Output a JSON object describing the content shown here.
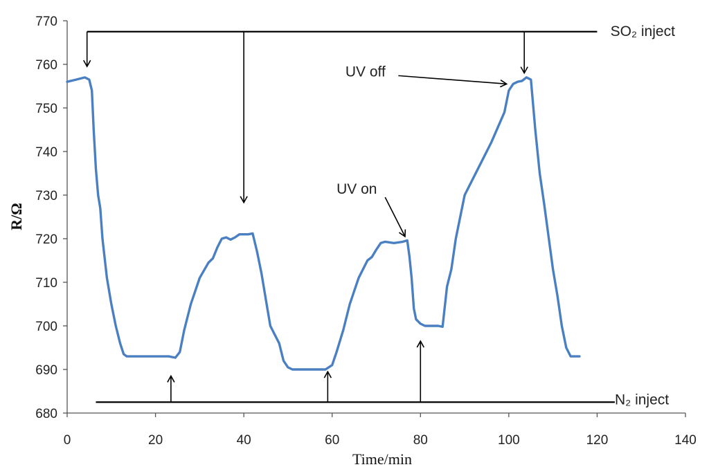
{
  "chart_data": {
    "type": "line",
    "xlabel": "Time/min",
    "ylabel": "R/Ω",
    "xlim": [
      0,
      140
    ],
    "ylim": [
      680,
      770
    ],
    "x_ticks": [
      0,
      20,
      40,
      60,
      80,
      100,
      120,
      140
    ],
    "y_ticks": [
      680,
      690,
      700,
      710,
      720,
      730,
      740,
      750,
      760,
      770
    ],
    "series": [
      {
        "color": "#4a7fc1",
        "points": [
          [
            0,
            756
          ],
          [
            2,
            756.5
          ],
          [
            4,
            757
          ],
          [
            5,
            756.5
          ],
          [
            5.6,
            754
          ],
          [
            6,
            745
          ],
          [
            6.5,
            736
          ],
          [
            7,
            730
          ],
          [
            7.5,
            727
          ],
          [
            8,
            720
          ],
          [
            9,
            711
          ],
          [
            10,
            705
          ],
          [
            11,
            700
          ],
          [
            12,
            696
          ],
          [
            12.8,
            693.5
          ],
          [
            13.5,
            693
          ],
          [
            15,
            693
          ],
          [
            20,
            693
          ],
          [
            23,
            693
          ],
          [
            24.5,
            692.7
          ],
          [
            25.5,
            694
          ],
          [
            26.5,
            699
          ],
          [
            28,
            705
          ],
          [
            30,
            711
          ],
          [
            32,
            714.5
          ],
          [
            33,
            715.5
          ],
          [
            34,
            718
          ],
          [
            35,
            720
          ],
          [
            36,
            720.3
          ],
          [
            37,
            719.8
          ],
          [
            38,
            720.3
          ],
          [
            39,
            721
          ],
          [
            41,
            721
          ],
          [
            42,
            721.2
          ],
          [
            43,
            717
          ],
          [
            44,
            712
          ],
          [
            45,
            706
          ],
          [
            46,
            700
          ],
          [
            47,
            698
          ],
          [
            48,
            696
          ],
          [
            49,
            692
          ],
          [
            50,
            690.5
          ],
          [
            51,
            690
          ],
          [
            55,
            690
          ],
          [
            57,
            690
          ],
          [
            58.5,
            690
          ],
          [
            60,
            691
          ],
          [
            61,
            694
          ],
          [
            62.5,
            699
          ],
          [
            64,
            705
          ],
          [
            66,
            711
          ],
          [
            68,
            715
          ],
          [
            69,
            715.8
          ],
          [
            70,
            717.5
          ],
          [
            71,
            719
          ],
          [
            72,
            719.3
          ],
          [
            74,
            719
          ],
          [
            76,
            719.3
          ],
          [
            77,
            719.6
          ],
          [
            77.5,
            716
          ],
          [
            78,
            711
          ],
          [
            78.5,
            704
          ],
          [
            79,
            701.5
          ],
          [
            80,
            700.5
          ],
          [
            81,
            700
          ],
          [
            84,
            700
          ],
          [
            85,
            699.8
          ],
          [
            86,
            709
          ],
          [
            87,
            713
          ],
          [
            88,
            720
          ],
          [
            90,
            730
          ],
          [
            93,
            736
          ],
          [
            96,
            742
          ],
          [
            99,
            749
          ],
          [
            100,
            754
          ],
          [
            101,
            755.5
          ],
          [
            102,
            756
          ],
          [
            103,
            756.2
          ],
          [
            104,
            757
          ],
          [
            105,
            756.5
          ],
          [
            106,
            745
          ],
          [
            107,
            735
          ],
          [
            108,
            728
          ],
          [
            110,
            713
          ],
          [
            111,
            707
          ],
          [
            112,
            700
          ],
          [
            113,
            695
          ],
          [
            114,
            693
          ],
          [
            115,
            693
          ],
          [
            116,
            693
          ]
        ]
      }
    ],
    "markers": {
      "top_line": {
        "y": 767.5,
        "x_start": 4.5,
        "x_end": 120
      },
      "bottom_line": {
        "y": 682.5,
        "x_start": 6.5,
        "x_end": 124
      },
      "so2_arrows_x": [
        4.5,
        40,
        103.5
      ],
      "n2_arrows": [
        {
          "x": 23.5,
          "top": 688.5
        },
        {
          "x": 59,
          "top": 689.5
        },
        {
          "x": 80,
          "top": 696.5
        }
      ]
    },
    "annotations": [
      {
        "label": "SO₂ inject",
        "text_x": 123,
        "text_y": 766.5
      },
      {
        "label": "N₂ inject",
        "text_x": 124,
        "text_y": 682
      },
      {
        "label": "UV off",
        "text_x": 63,
        "text_y": 757.2,
        "arrow_from": [
          75,
          757.4
        ],
        "arrow_to": [
          99.5,
          755.5
        ]
      },
      {
        "label": "UV on",
        "text_x": 61,
        "text_y": 730.3,
        "arrow_from": [
          72,
          729.5
        ],
        "arrow_to": [
          76.5,
          720.5
        ]
      }
    ]
  }
}
